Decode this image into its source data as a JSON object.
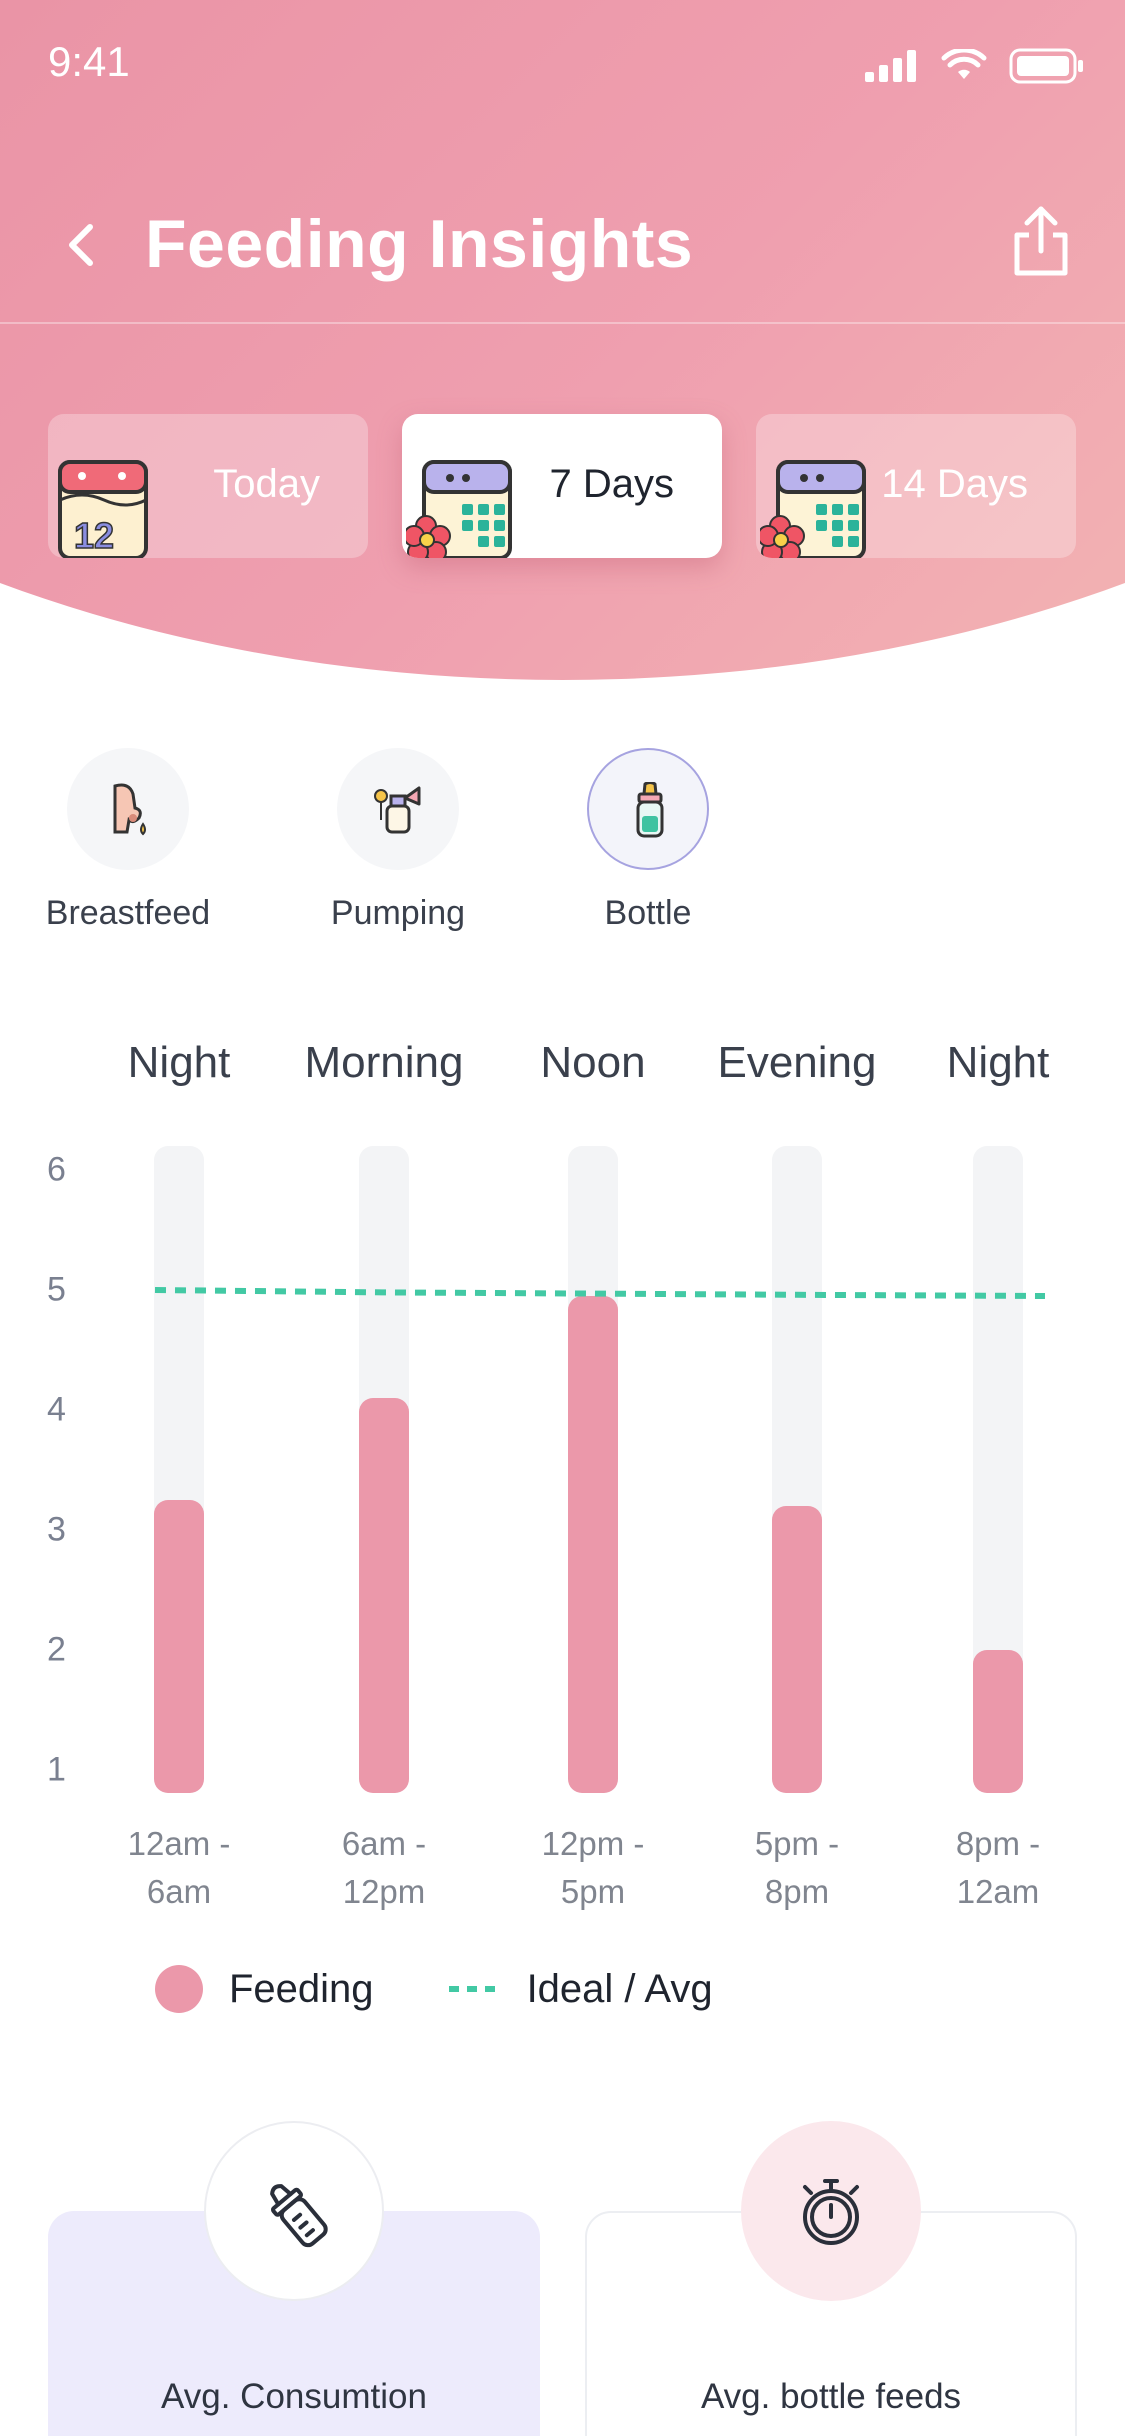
{
  "status_bar": {
    "time": "9:41"
  },
  "header": {
    "title": "Feeding Insights"
  },
  "range_tabs": [
    {
      "label": "Today",
      "icon": "calendar-12-icon",
      "active": false
    },
    {
      "label": "7 Days",
      "icon": "calendar-flower-icon",
      "active": true
    },
    {
      "label": "14 Days",
      "icon": "calendar-flower-icon",
      "active": false
    }
  ],
  "feed_types": [
    {
      "label": "Breastfeed",
      "icon": "breastfeed-icon",
      "selected": false
    },
    {
      "label": "Pumping",
      "icon": "pump-icon",
      "selected": false
    },
    {
      "label": "Bottle",
      "icon": "bottle-icon",
      "selected": true
    }
  ],
  "chart_data": {
    "type": "bar",
    "categories": [
      "Night",
      "Morning",
      "Noon",
      "Evening",
      "Night"
    ],
    "time_ranges": [
      [
        "12am -",
        "6am"
      ],
      [
        "6am -",
        "12pm"
      ],
      [
        "12pm -",
        "5pm"
      ],
      [
        "5pm -",
        "8pm"
      ],
      [
        "8pm -",
        "12am"
      ]
    ],
    "series": [
      {
        "name": "Feeding",
        "values": [
          3.25,
          4.1,
          4.95,
          3.2,
          2.0
        ]
      }
    ],
    "reference_line": {
      "name": "Ideal / Avg",
      "values": [
        5.0,
        4.98,
        4.97,
        4.96,
        4.95
      ]
    },
    "y_ticks": [
      1,
      2,
      3,
      4,
      5,
      6
    ],
    "ylim": [
      0.8,
      6.2
    ],
    "title": "",
    "xlabel": "",
    "ylabel": "",
    "colors": {
      "feeding": "#eb98aa",
      "track": "#f3f4f6",
      "ideal": "#42c9a4"
    }
  },
  "legend": {
    "feeding": "Feeding",
    "ideal": "Ideal / Avg"
  },
  "stats": [
    {
      "label": "Avg. Consumtion",
      "icon": "bottle-outline-icon"
    },
    {
      "label": "Avg. bottle feeds",
      "icon": "stopwatch-icon"
    }
  ],
  "colors": {
    "header_pink": "#ea94a6",
    "accent_purple": "#a6a3e0",
    "card_lavender": "#edebfc"
  }
}
